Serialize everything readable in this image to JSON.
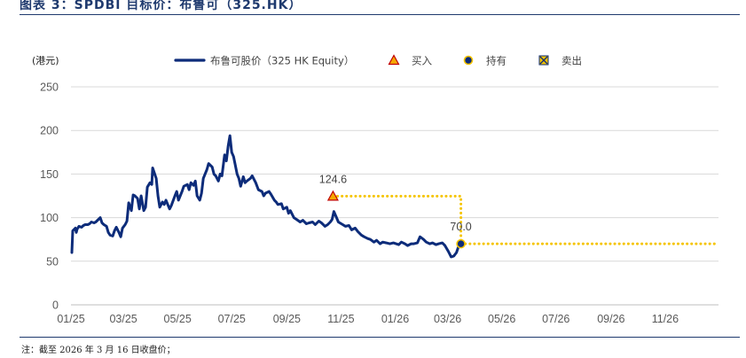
{
  "figure_title": "图表 3：SPDBI 目标价：布鲁可（325.HK）",
  "footnote": "注：截至 2026 年 3 月 16 日收盘价；",
  "chart_data": {
    "type": "line",
    "y_unit": "(港元)",
    "ylim": [
      0,
      250
    ],
    "y_ticks": [
      0,
      50,
      100,
      150,
      200,
      250
    ],
    "x_range": [
      "2025-01-01",
      "2026-12-31"
    ],
    "x_ticks": [
      {
        "date": "2025-01-01",
        "label": "01/25"
      },
      {
        "date": "2025-03-01",
        "label": "03/25"
      },
      {
        "date": "2025-05-01",
        "label": "05/25"
      },
      {
        "date": "2025-07-01",
        "label": "07/25"
      },
      {
        "date": "2025-09-01",
        "label": "09/25"
      },
      {
        "date": "2025-11-01",
        "label": "11/25"
      },
      {
        "date": "2026-01-01",
        "label": "01/26"
      },
      {
        "date": "2026-03-01",
        "label": "03/26"
      },
      {
        "date": "2026-05-01",
        "label": "05/26"
      },
      {
        "date": "2026-07-01",
        "label": "07/26"
      },
      {
        "date": "2026-09-01",
        "label": "09/26"
      },
      {
        "date": "2026-11-01",
        "label": "11/26"
      }
    ],
    "grid": true,
    "legend_position": "top",
    "colors": {
      "price_line": "#0d2c7a",
      "target_dotted": "#f5c400",
      "buy_marker": "#f5a800",
      "buy_marker_edge": "#c00000",
      "hold_marker": "#0d2c7a",
      "hold_marker_edge": "#f5c400",
      "sell_marker": "#f5c400",
      "sell_marker_edge": "#0d2c7a",
      "grid": "#d9d9d9",
      "title": "#1f3a6e"
    },
    "legend": [
      {
        "key": "price",
        "label": "布鲁可股价（325 HK Equity）"
      },
      {
        "key": "buy",
        "label": "买入"
      },
      {
        "key": "hold",
        "label": "持有"
      },
      {
        "key": "sell",
        "label": "卖出"
      }
    ],
    "series": [
      {
        "name": "布鲁可股价（325 HK Equity）",
        "points": [
          [
            "2025-01-02",
            60
          ],
          [
            "2025-01-03",
            85
          ],
          [
            "2025-01-06",
            88
          ],
          [
            "2025-01-07",
            83
          ],
          [
            "2025-01-08",
            87
          ],
          [
            "2025-01-10",
            90
          ],
          [
            "2025-01-13",
            89
          ],
          [
            "2025-01-15",
            91
          ],
          [
            "2025-01-17",
            92
          ],
          [
            "2025-01-20",
            92
          ],
          [
            "2025-01-22",
            93
          ],
          [
            "2025-01-24",
            95
          ],
          [
            "2025-01-27",
            94
          ],
          [
            "2025-01-29",
            95
          ],
          [
            "2025-02-03",
            100
          ],
          [
            "2025-02-05",
            94
          ],
          [
            "2025-02-07",
            92
          ],
          [
            "2025-02-10",
            90
          ],
          [
            "2025-02-12",
            83
          ],
          [
            "2025-02-14",
            80
          ],
          [
            "2025-02-17",
            79
          ],
          [
            "2025-02-19",
            85
          ],
          [
            "2025-02-21",
            89
          ],
          [
            "2025-02-24",
            83
          ],
          [
            "2025-02-26",
            78
          ],
          [
            "2025-02-28",
            88
          ],
          [
            "2025-03-03",
            92
          ],
          [
            "2025-03-05",
            96
          ],
          [
            "2025-03-07",
            117
          ],
          [
            "2025-03-10",
            108
          ],
          [
            "2025-03-12",
            126
          ],
          [
            "2025-03-14",
            125
          ],
          [
            "2025-03-17",
            122
          ],
          [
            "2025-03-19",
            110
          ],
          [
            "2025-03-21",
            125
          ],
          [
            "2025-03-24",
            108
          ],
          [
            "2025-03-26",
            112
          ],
          [
            "2025-03-28",
            135
          ],
          [
            "2025-03-31",
            140
          ],
          [
            "2025-04-02",
            138
          ],
          [
            "2025-04-03",
            157
          ],
          [
            "2025-04-07",
            145
          ],
          [
            "2025-04-09",
            125
          ],
          [
            "2025-04-11",
            112
          ],
          [
            "2025-04-14",
            118
          ],
          [
            "2025-04-16",
            115
          ],
          [
            "2025-04-18",
            120
          ],
          [
            "2025-04-22",
            110
          ],
          [
            "2025-04-24",
            114
          ],
          [
            "2025-04-28",
            125
          ],
          [
            "2025-04-30",
            130
          ],
          [
            "2025-05-02",
            120
          ],
          [
            "2025-05-06",
            130
          ],
          [
            "2025-05-08",
            136
          ],
          [
            "2025-05-12",
            138
          ],
          [
            "2025-05-14",
            132
          ],
          [
            "2025-05-16",
            140
          ],
          [
            "2025-05-19",
            137
          ],
          [
            "2025-05-21",
            142
          ],
          [
            "2025-05-23",
            125
          ],
          [
            "2025-05-26",
            120
          ],
          [
            "2025-05-28",
            128
          ],
          [
            "2025-05-30",
            145
          ],
          [
            "2025-06-03",
            155
          ],
          [
            "2025-06-05",
            162
          ],
          [
            "2025-06-09",
            158
          ],
          [
            "2025-06-11",
            150
          ],
          [
            "2025-06-13",
            148
          ],
          [
            "2025-06-16",
            142
          ],
          [
            "2025-06-18",
            150
          ],
          [
            "2025-06-20",
            148
          ],
          [
            "2025-06-23",
            172
          ],
          [
            "2025-06-25",
            165
          ],
          [
            "2025-06-27",
            182
          ],
          [
            "2025-06-29",
            194
          ],
          [
            "2025-07-01",
            175
          ],
          [
            "2025-07-03",
            170
          ],
          [
            "2025-07-07",
            150
          ],
          [
            "2025-07-09",
            145
          ],
          [
            "2025-07-11",
            136
          ],
          [
            "2025-07-14",
            147
          ],
          [
            "2025-07-16",
            140
          ],
          [
            "2025-07-18",
            142
          ],
          [
            "2025-07-22",
            145
          ],
          [
            "2025-07-24",
            148
          ],
          [
            "2025-07-28",
            140
          ],
          [
            "2025-07-31",
            132
          ],
          [
            "2025-08-04",
            130
          ],
          [
            "2025-08-06",
            125
          ],
          [
            "2025-08-08",
            128
          ],
          [
            "2025-08-12",
            130
          ],
          [
            "2025-08-14",
            127
          ],
          [
            "2025-08-18",
            120
          ],
          [
            "2025-08-20",
            118
          ],
          [
            "2025-08-22",
            115
          ],
          [
            "2025-08-26",
            116
          ],
          [
            "2025-08-28",
            110
          ],
          [
            "2025-09-01",
            112
          ],
          [
            "2025-09-03",
            105
          ],
          [
            "2025-09-05",
            108
          ],
          [
            "2025-09-09",
            100
          ],
          [
            "2025-09-12",
            98
          ],
          [
            "2025-09-16",
            95
          ],
          [
            "2025-09-19",
            97
          ],
          [
            "2025-09-23",
            93
          ],
          [
            "2025-09-26",
            94
          ],
          [
            "2025-09-30",
            95
          ],
          [
            "2025-10-03",
            92
          ],
          [
            "2025-10-07",
            96
          ],
          [
            "2025-10-10",
            94
          ],
          [
            "2025-10-14",
            90
          ],
          [
            "2025-10-17",
            92
          ],
          [
            "2025-10-20",
            95
          ],
          [
            "2025-10-22",
            98
          ],
          [
            "2025-10-24",
            107
          ],
          [
            "2025-10-27",
            100
          ],
          [
            "2025-10-29",
            95
          ],
          [
            "2025-11-03",
            92
          ],
          [
            "2025-11-06",
            90
          ],
          [
            "2025-11-10",
            91
          ],
          [
            "2025-11-13",
            86
          ],
          [
            "2025-11-17",
            88
          ],
          [
            "2025-11-20",
            84
          ],
          [
            "2025-11-24",
            80
          ],
          [
            "2025-11-27",
            78
          ],
          [
            "2025-12-01",
            76
          ],
          [
            "2025-12-04",
            75
          ],
          [
            "2025-12-08",
            72
          ],
          [
            "2025-12-11",
            74
          ],
          [
            "2025-12-15",
            70
          ],
          [
            "2025-12-18",
            72
          ],
          [
            "2025-12-22",
            71
          ],
          [
            "2025-12-26",
            70
          ],
          [
            "2025-12-30",
            71
          ],
          [
            "2026-01-05",
            69
          ],
          [
            "2026-01-08",
            72
          ],
          [
            "2026-01-12",
            70
          ],
          [
            "2026-01-15",
            68
          ],
          [
            "2026-01-19",
            70
          ],
          [
            "2026-01-22",
            70
          ],
          [
            "2026-01-26",
            71
          ],
          [
            "2026-01-29",
            78
          ],
          [
            "2026-02-02",
            75
          ],
          [
            "2026-02-05",
            72
          ],
          [
            "2026-02-09",
            70
          ],
          [
            "2026-02-12",
            71
          ],
          [
            "2026-02-16",
            69
          ],
          [
            "2026-02-19",
            70
          ],
          [
            "2026-02-23",
            71
          ],
          [
            "2026-02-26",
            68
          ],
          [
            "2026-03-02",
            61
          ],
          [
            "2026-03-05",
            55
          ],
          [
            "2026-03-08",
            56
          ],
          [
            "2026-03-11",
            60
          ],
          [
            "2026-03-13",
            66
          ],
          [
            "2026-03-16",
            70
          ]
        ]
      }
    ],
    "target_lines": [
      {
        "kind": "buy",
        "points": [
          [
            "2025-10-23",
            124.6
          ],
          [
            "2026-03-16",
            124.6
          ],
          [
            "2026-03-16",
            70.0
          ]
        ]
      },
      {
        "kind": "hold",
        "points": [
          [
            "2026-03-16",
            70.0
          ],
          [
            "2026-12-31",
            70.0
          ]
        ]
      }
    ],
    "markers": [
      {
        "kind": "buy",
        "date": "2025-10-23",
        "value": 124.6,
        "label": "124.6"
      },
      {
        "kind": "hold",
        "date": "2026-03-16",
        "value": 70.0,
        "label": "70.0"
      }
    ]
  }
}
